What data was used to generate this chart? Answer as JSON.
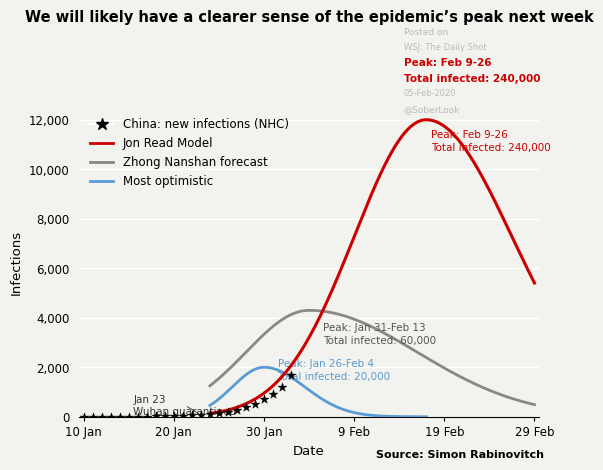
{
  "title": "We will likely have a clearer sense of the epidemic’s peak next week",
  "xlabel": "Date",
  "ylabel": "Infections",
  "source": "Source: Simon Rabinovitch",
  "watermark_line1": "Posted on",
  "watermark_line2": "WSJ: The Daily Shot",
  "watermark_line3": "05-Feb-2020",
  "watermark_line4": "@SoberLook",
  "legend_entries": [
    {
      "label": "China: new infections (NHC)",
      "color": "black",
      "style": "star"
    },
    {
      "label": "Jon Read Model",
      "color": "#cc0000",
      "style": "line"
    },
    {
      "label": "Zhong Nanshan forecast",
      "color": "#888888",
      "style": "line"
    },
    {
      "label": "Most optimistic",
      "color": "#5b9bd5",
      "style": "line"
    }
  ],
  "annotation_red_line1": "Peak: Feb 9-26",
  "annotation_red_line2": "Total infected: 240,000",
  "annotation_gray_line1": "Peak: Jan 31-Feb 13",
  "annotation_gray_line2": "Total infected: 60,000",
  "annotation_blue_line1": "Peak: Jan 26-Feb 4",
  "annotation_blue_line2": "Total infected: 20,000",
  "annotation_wuhan_line1": "Jan 23",
  "annotation_wuhan_line2": "Wuhan quarantined",
  "ylim": [
    0,
    12500
  ],
  "yticks": [
    0,
    2000,
    4000,
    6000,
    8000,
    10000,
    12000
  ],
  "xtick_labels": [
    "10 Jan",
    "20 Jan",
    "30 Jan",
    "9 Feb",
    "19 Feb",
    "29 Feb"
  ],
  "xtick_positions": [
    0,
    10,
    20,
    30,
    40,
    50
  ],
  "x_min": 0,
  "x_max": 50,
  "background_color": "#f2f2ee",
  "red_color": "#cc0000",
  "gray_color": "#888888",
  "blue_color": "#5b9bd5",
  "china_days": [
    0,
    1,
    2,
    3,
    4,
    5,
    6,
    7,
    8,
    9,
    10,
    11,
    12,
    13,
    14,
    15,
    16,
    17,
    18,
    19,
    20,
    21,
    22,
    23
  ],
  "china_infections": [
    0,
    0,
    0,
    2,
    3,
    5,
    7,
    10,
    14,
    20,
    30,
    45,
    60,
    80,
    110,
    150,
    200,
    280,
    380,
    500,
    700,
    900,
    1200,
    1700
  ]
}
